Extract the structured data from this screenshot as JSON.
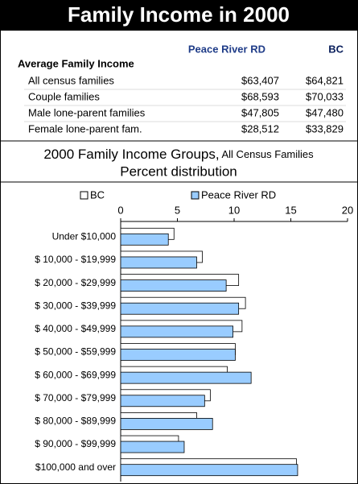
{
  "header": {
    "title": "Family Income in 2000"
  },
  "table": {
    "columns": [
      "Peace River RD",
      "BC"
    ],
    "section": "Average Family Income",
    "rows": [
      [
        "All census families",
        "$63,407",
        "$64,821"
      ],
      [
        "Couple families",
        "$68,593",
        "$70,033"
      ],
      [
        "Male lone-parent families",
        "$47,805",
        "$47,480"
      ],
      [
        "Female lone-parent fam.",
        "$28,512",
        "$33,829"
      ]
    ]
  },
  "chart_data": {
    "type": "bar",
    "orientation": "horizontal",
    "title": "2000 Family Income Groups,",
    "title_note": "All Census Families",
    "subtitle": "Percent distribution",
    "categories": [
      "Under $10,000",
      "$ 10,000 - $19,999",
      "$ 20,000 - $29,999",
      "$ 30,000 - $39,999",
      "$ 40,000 - $49,999",
      "$ 50,000 - $59,999",
      "$ 60,000 - $69,999",
      "$ 70,000 - $79,999",
      "$ 80,000 - $89,999",
      "$ 90,000 - $99,999",
      "$100,000 and over"
    ],
    "series": [
      {
        "name": "BC",
        "color": "#ffffff",
        "values": [
          4.7,
          7.2,
          10.4,
          11.0,
          10.7,
          10.1,
          9.4,
          7.9,
          6.7,
          5.1,
          15.5
        ]
      },
      {
        "name": "Peace River RD",
        "color": "#99ccff",
        "values": [
          4.2,
          6.7,
          9.3,
          10.4,
          9.9,
          10.1,
          11.5,
          7.4,
          8.1,
          5.6,
          15.6
        ]
      }
    ],
    "xlim": [
      0,
      20
    ],
    "xticks": [
      0,
      5,
      10,
      15,
      20
    ],
    "legend": "top"
  }
}
